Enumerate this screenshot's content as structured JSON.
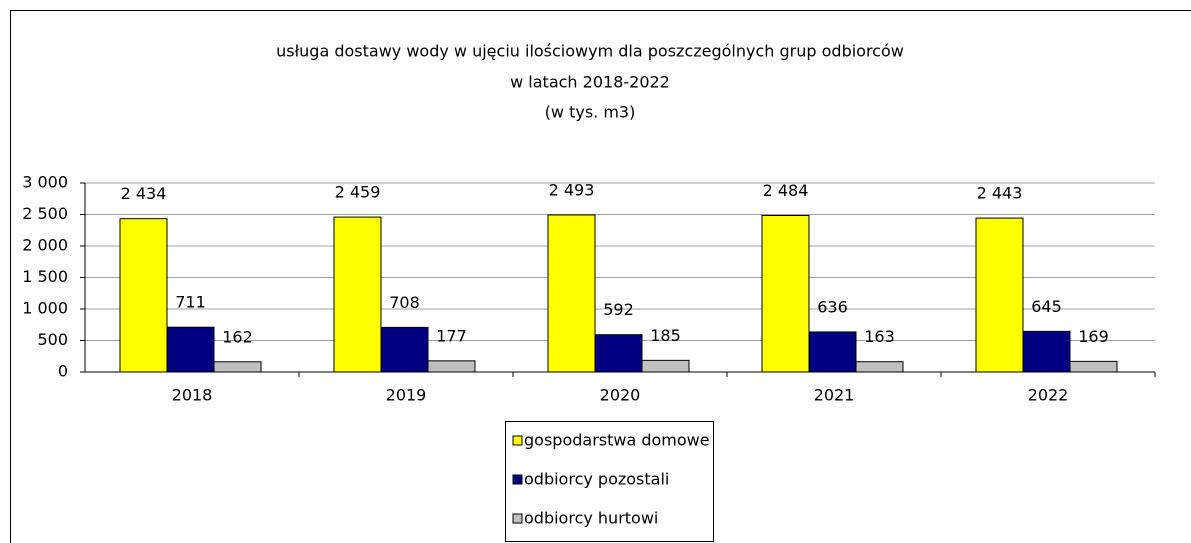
{
  "chart_data": {
    "type": "bar",
    "title": [
      "usługa dostawy wody w ujęciu ilościowym dla poszczególnych grup odbiorców",
      "w latach 2018-2022",
      "(w tys. m3)"
    ],
    "categories": [
      "2018",
      "2019",
      "2020",
      "2021",
      "2022"
    ],
    "series": [
      {
        "name": "gospodarstwa domowe",
        "color": "#ffff00",
        "values": [
          2434,
          2459,
          2493,
          2484,
          2443
        ],
        "value_labels": [
          "2 434",
          "2 459",
          "2 493",
          "2 484",
          "2 443"
        ]
      },
      {
        "name": "odbiorcy pozostali",
        "color": "#000080",
        "values": [
          711,
          708,
          592,
          636,
          645
        ]
      },
      {
        "name": "odbiorcy hurtowi",
        "color": "#c0c0c0",
        "values": [
          162,
          177,
          185,
          163,
          169
        ]
      }
    ],
    "ylim": [
      0,
      3000
    ],
    "yticks": [
      0,
      500,
      {
        "value": 1000,
        "label": "1 000"
      },
      {
        "value": 1500,
        "label": "1 500"
      },
      {
        "value": 2000,
        "label": "2 000"
      },
      {
        "value": 2500,
        "label": "2 500"
      },
      {
        "value": 3000,
        "label": "3 000"
      }
    ],
    "grid": true,
    "legend": "bottom"
  }
}
